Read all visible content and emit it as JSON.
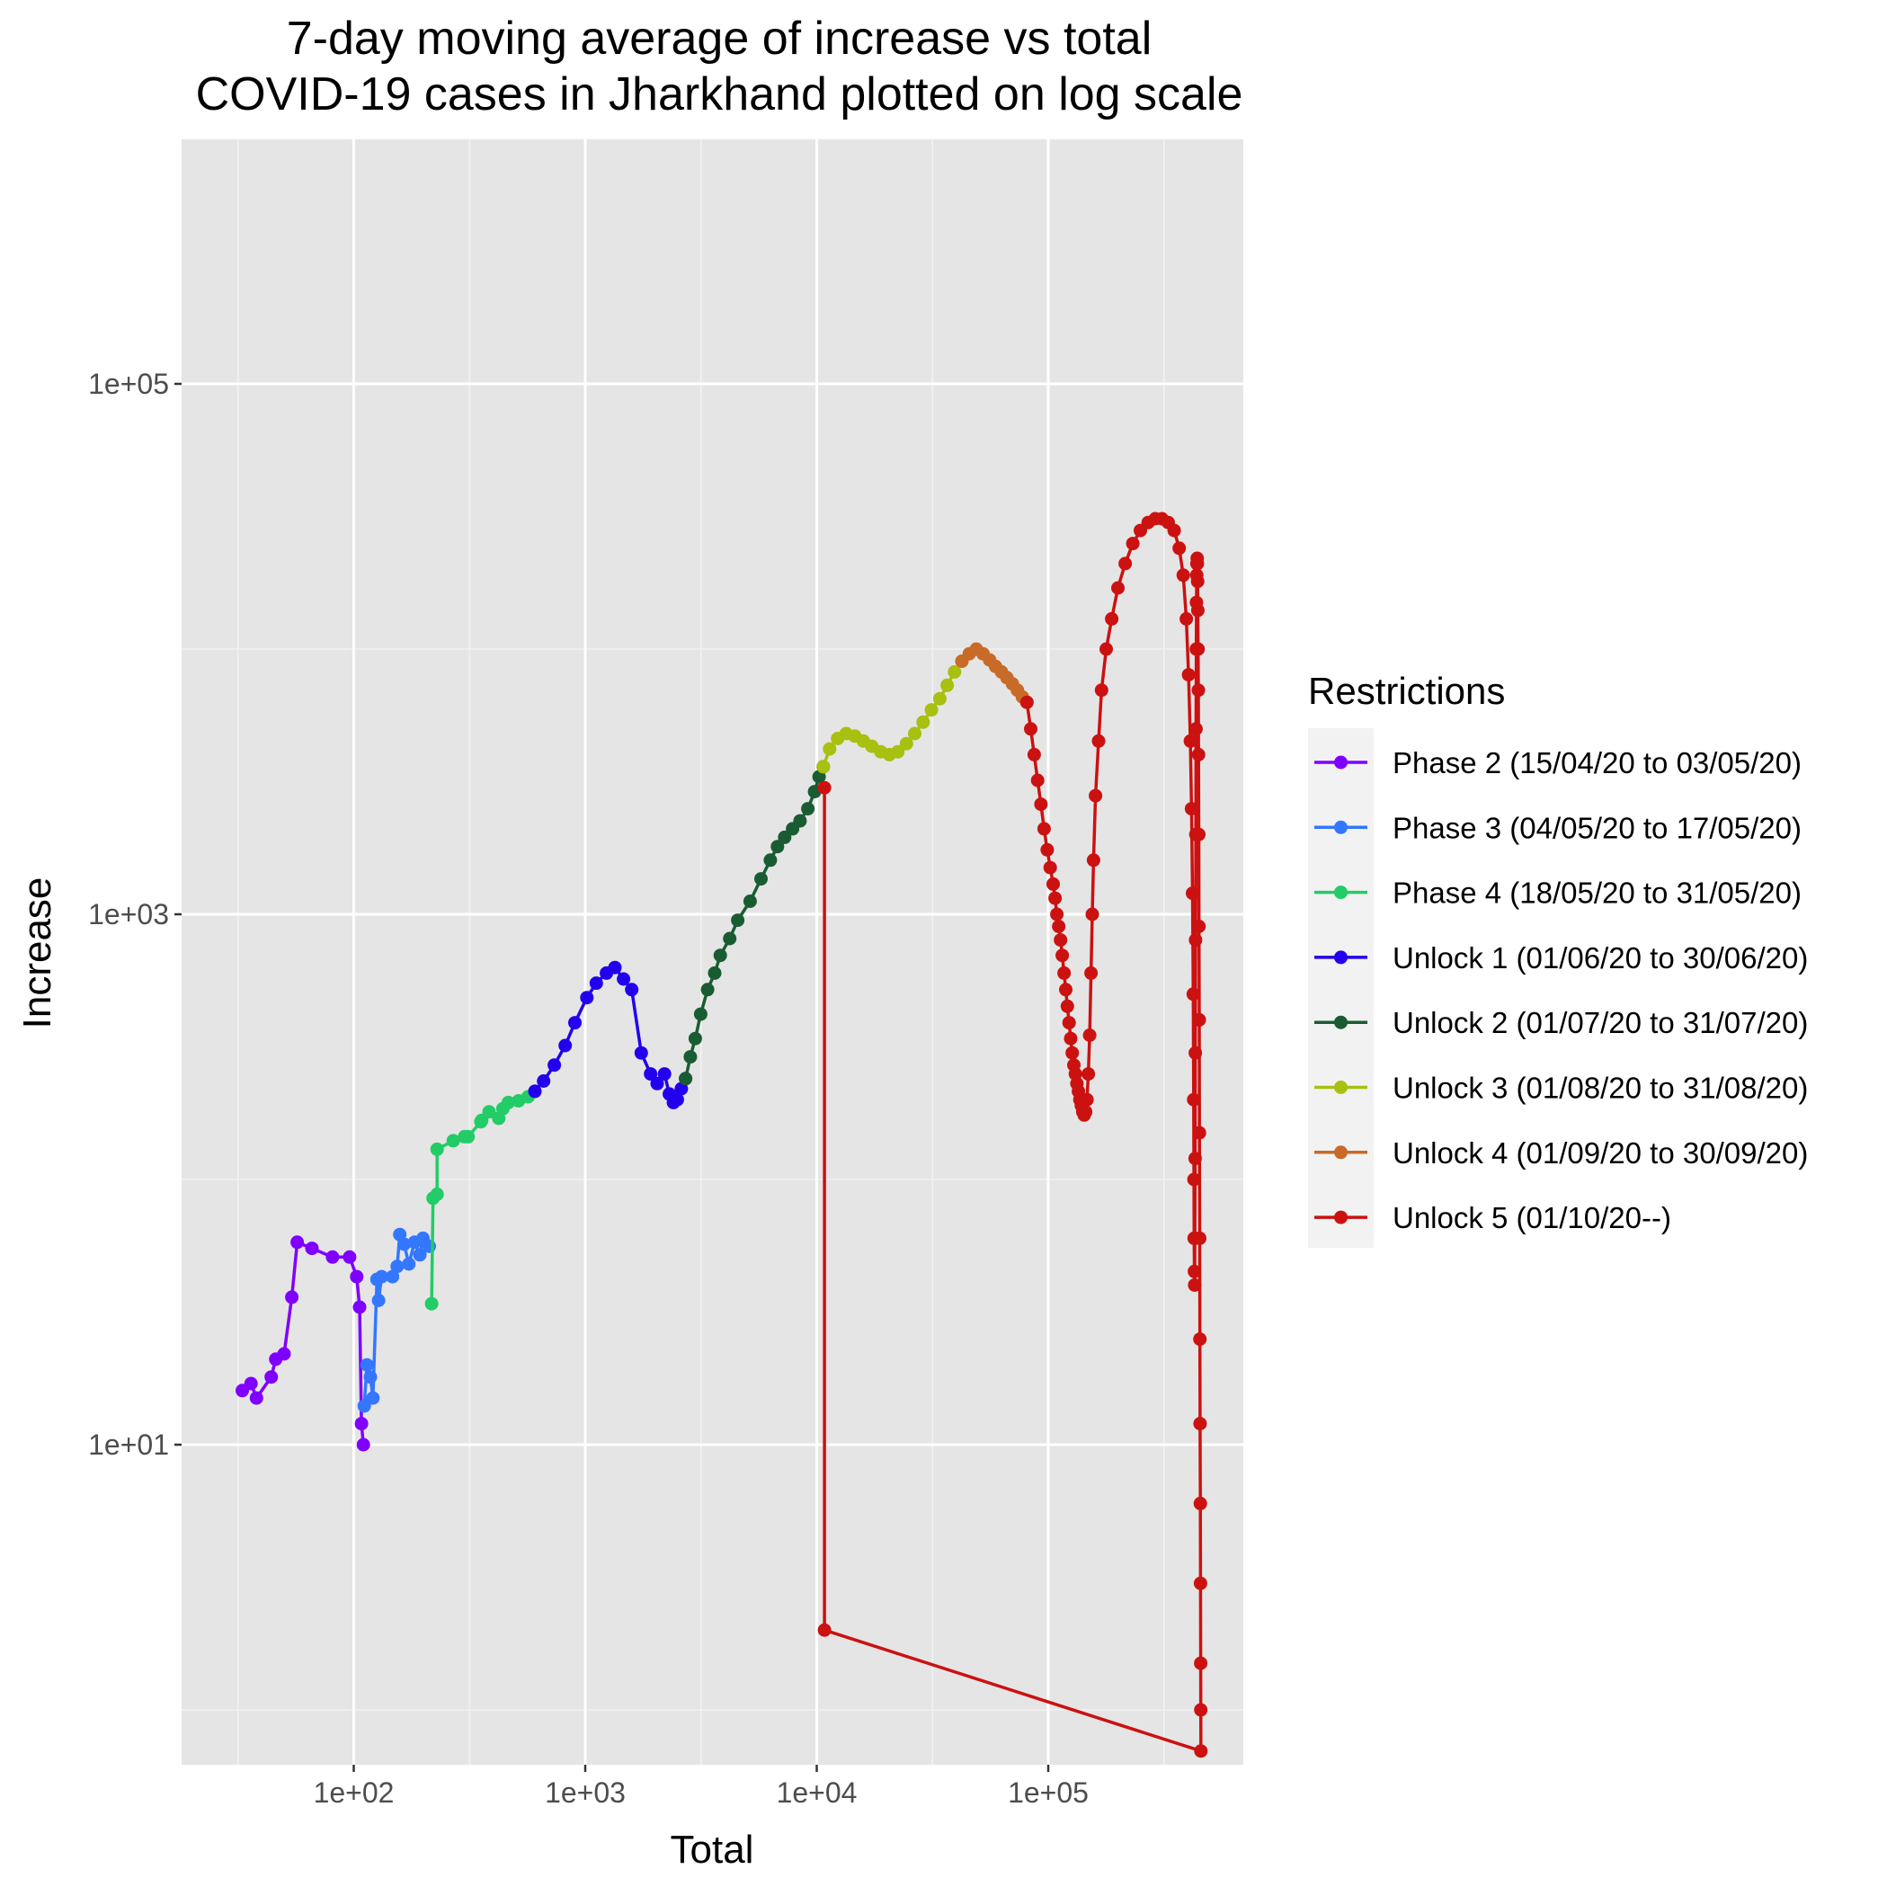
{
  "chart_data": {
    "type": "line",
    "title": [
      "7-day moving average of increase vs total",
      "COVID-19 cases in Jharkhand plotted on log scale"
    ],
    "xlabel": "Total",
    "ylabel": "Increase",
    "x_scale": "log10",
    "y_scale": "log10",
    "xlim": [
      30,
      800000
    ],
    "ylim": [
      0.5,
      1000000
    ],
    "x_ticks": [
      {
        "value": 100,
        "label": "1e+02"
      },
      {
        "value": 1000,
        "label": "1e+03"
      },
      {
        "value": 10000,
        "label": "1e+04"
      },
      {
        "value": 100000,
        "label": "1e+05"
      }
    ],
    "y_ticks": [
      {
        "value": 10,
        "label": "1e+01"
      },
      {
        "value": 1000,
        "label": "1e+03"
      },
      {
        "value": 100000,
        "label": "1e+05"
      }
    ],
    "grid": true,
    "legend": {
      "title": "Restrictions",
      "position": "right"
    },
    "series": [
      {
        "name": "Phase 2 (15/04/20 to 03/05/20)",
        "color": "#7F00FF",
        "points": [
          [
            33,
            16
          ],
          [
            36,
            17
          ],
          [
            38,
            15
          ],
          [
            44,
            18
          ],
          [
            46,
            21
          ],
          [
            50,
            22
          ],
          [
            54,
            36
          ],
          [
            57,
            58
          ],
          [
            66,
            55
          ],
          [
            81,
            51
          ],
          [
            96,
            51
          ],
          [
            103,
            43
          ],
          [
            106,
            33
          ],
          [
            108,
            12
          ],
          [
            110,
            10
          ]
        ]
      },
      {
        "name": "Phase 3 (04/05/20 to 17/05/20)",
        "color": "#3377FF",
        "points": [
          [
            111,
            14
          ],
          [
            114,
            20
          ],
          [
            118,
            18
          ],
          [
            121,
            15
          ],
          [
            126,
            42
          ],
          [
            128,
            35
          ],
          [
            132,
            43
          ],
          [
            147,
            43
          ],
          [
            154,
            47
          ],
          [
            158,
            62
          ],
          [
            165,
            57
          ],
          [
            173,
            48
          ],
          [
            183,
            58
          ],
          [
            193,
            52
          ],
          [
            199,
            60
          ],
          [
            212,
            56
          ]
        ]
      },
      {
        "name": "Phase 4 (18/05/20 to 31/05/20)",
        "color": "#22CC66",
        "points": [
          [
            217,
            34
          ],
          [
            220,
            85
          ],
          [
            229,
            88
          ],
          [
            229,
            130
          ],
          [
            269,
            140
          ],
          [
            301,
            145
          ],
          [
            312,
            145
          ],
          [
            354,
            165
          ],
          [
            357,
            167
          ],
          [
            384,
            180
          ],
          [
            423,
            170
          ],
          [
            441,
            185
          ],
          [
            465,
            195
          ],
          [
            515,
            198
          ],
          [
            566,
            205
          ],
          [
            606,
            215
          ]
        ]
      },
      {
        "name": "Unlock 1 (01/06/20 to 30/06/20)",
        "color": "#2200EE",
        "points": [
          [
            606,
            215
          ],
          [
            661,
            235
          ],
          [
            735,
            270
          ],
          [
            819,
            320
          ],
          [
            902,
            390
          ],
          [
            1016,
            485
          ],
          [
            1116,
            550
          ],
          [
            1235,
            600
          ],
          [
            1343,
            630
          ],
          [
            1464,
            570
          ],
          [
            1588,
            520
          ],
          [
            1745,
            300
          ],
          [
            1915,
            250
          ],
          [
            2045,
            230
          ],
          [
            2200,
            250
          ],
          [
            2308,
            210
          ],
          [
            2405,
            195
          ],
          [
            2498,
            200
          ],
          [
            2601,
            220
          ],
          [
            2713,
            240
          ]
        ]
      },
      {
        "name": "Unlock 2 (01/07/20 to 31/07/20)",
        "color": "#1A5C32",
        "points": [
          [
            2713,
            240
          ],
          [
            2845,
            290
          ],
          [
            2988,
            340
          ],
          [
            3151,
            420
          ],
          [
            3378,
            520
          ],
          [
            3623,
            600
          ],
          [
            3832,
            700
          ],
          [
            4208,
            810
          ],
          [
            4556,
            950
          ],
          [
            5155,
            1120
          ],
          [
            5743,
            1360
          ],
          [
            6304,
            1600
          ],
          [
            6768,
            1800
          ],
          [
            7266,
            1950
          ],
          [
            7863,
            2100
          ],
          [
            8464,
            2250
          ],
          [
            9154,
            2500
          ],
          [
            9785,
            2900
          ],
          [
            10232,
            3300
          ],
          [
            10677,
            3600
          ]
        ]
      },
      {
        "name": "Unlock 3 (01/08/20 to 31/08/20)",
        "color": "#A8C010",
        "points": [
          [
            10677,
            3600
          ],
          [
            11361,
            4200
          ],
          [
            12300,
            4600
          ],
          [
            13400,
            4800
          ],
          [
            14600,
            4700
          ],
          [
            15900,
            4500
          ],
          [
            17300,
            4300
          ],
          [
            18900,
            4100
          ],
          [
            20600,
            4000
          ],
          [
            22400,
            4100
          ],
          [
            24400,
            4400
          ],
          [
            26500,
            4800
          ],
          [
            28800,
            5300
          ],
          [
            31300,
            5900
          ],
          [
            34000,
            6500
          ],
          [
            36600,
            7300
          ],
          [
            39400,
            8200
          ],
          [
            42400,
            9000
          ]
        ]
      },
      {
        "name": "Unlock 4 (01/09/20 to 30/09/20)",
        "color": "#C86A28",
        "points": [
          [
            42400,
            9000
          ],
          [
            45600,
            9600
          ],
          [
            48900,
            10000
          ],
          [
            52300,
            9600
          ],
          [
            55800,
            9100
          ],
          [
            59200,
            8600
          ],
          [
            62800,
            8200
          ],
          [
            66300,
            7800
          ],
          [
            70000,
            7400
          ],
          [
            73600,
            7000
          ],
          [
            77300,
            6600
          ],
          [
            80900,
            6300
          ]
        ]
      },
      {
        "name": "Unlock 5 (01/10/20--)",
        "color": "#CC1111",
        "points": [
          [
            80900,
            6300
          ],
          [
            84000,
            5000
          ],
          [
            87000,
            4000
          ],
          [
            90000,
            3200
          ],
          [
            93000,
            2600
          ],
          [
            96000,
            2100
          ],
          [
            99000,
            1750
          ],
          [
            102000,
            1500
          ],
          [
            105000,
            1300
          ],
          [
            107000,
            1150
          ],
          [
            109000,
            1000
          ],
          [
            111000,
            900
          ],
          [
            113000,
            800
          ],
          [
            115000,
            700
          ],
          [
            117000,
            600
          ],
          [
            119000,
            520
          ],
          [
            121000,
            450
          ],
          [
            123000,
            390
          ],
          [
            125000,
            340
          ],
          [
            127000,
            300
          ],
          [
            129000,
            270
          ],
          [
            131000,
            250
          ],
          [
            133000,
            230
          ],
          [
            135000,
            215
          ],
          [
            137000,
            200
          ],
          [
            139000,
            190
          ],
          [
            141000,
            180
          ],
          [
            143000,
            175
          ],
          [
            145000,
            180
          ],
          [
            147000,
            200
          ],
          [
            149000,
            250
          ],
          [
            151000,
            350
          ],
          [
            153000,
            600
          ],
          [
            155000,
            1000
          ],
          [
            157000,
            1600
          ],
          [
            160000,
            2800
          ],
          [
            165000,
            4500
          ],
          [
            170000,
            7000
          ],
          [
            178000,
            10000
          ],
          [
            188000,
            13000
          ],
          [
            200000,
            17000
          ],
          [
            215000,
            21000
          ],
          [
            232000,
            25000
          ],
          [
            250000,
            28000
          ],
          [
            270000,
            30000
          ],
          [
            290000,
            31000
          ],
          [
            310000,
            31000
          ],
          [
            330000,
            30000
          ],
          [
            350000,
            28000
          ],
          [
            368000,
            24000
          ],
          [
            383000,
            19000
          ],
          [
            395000,
            13000
          ],
          [
            404000,
            8000
          ],
          [
            411000,
            4500
          ],
          [
            416000,
            2500
          ],
          [
            420000,
            1200
          ],
          [
            423000,
            500
          ],
          [
            425000,
            200
          ],
          [
            426000,
            100
          ],
          [
            427000,
            60
          ],
          [
            428000,
            45
          ],
          [
            429000,
            40
          ],
          [
            430000,
            60
          ],
          [
            431000,
            120
          ],
          [
            432000,
            300
          ],
          [
            433000,
            800
          ],
          [
            434000,
            2000
          ],
          [
            435000,
            5000
          ],
          [
            436000,
            10000
          ],
          [
            437000,
            15000
          ],
          [
            438000,
            19000
          ],
          [
            439000,
            21000
          ],
          [
            440000,
            22000
          ],
          [
            441000,
            21000
          ],
          [
            442000,
            18000
          ],
          [
            443000,
            14000
          ],
          [
            444000,
            10000
          ],
          [
            445000,
            7000
          ],
          [
            446000,
            4000
          ],
          [
            447000,
            2000
          ],
          [
            448000,
            900
          ],
          [
            449000,
            400
          ],
          [
            450000,
            150
          ],
          [
            451000,
            60
          ],
          [
            452000,
            25
          ],
          [
            453000,
            12
          ],
          [
            454000,
            6
          ],
          [
            455000,
            3
          ],
          [
            455500,
            1.5
          ],
          [
            456000,
            1
          ],
          [
            456500,
            0.7
          ],
          [
            10800,
            2
          ],
          [
            10800,
            3000
          ]
        ]
      }
    ]
  }
}
